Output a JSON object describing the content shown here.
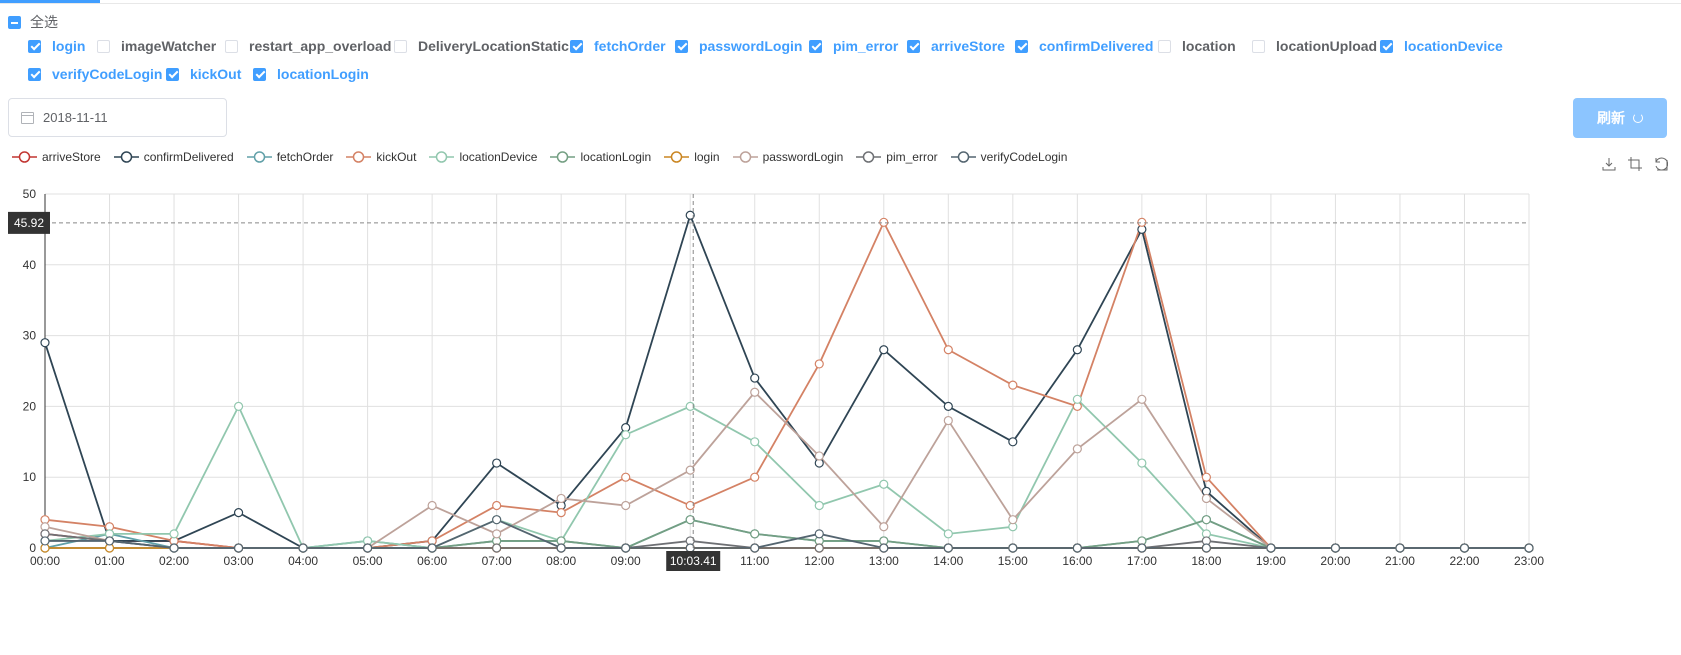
{
  "select_all": {
    "label": "全选",
    "state": "indeterminate"
  },
  "options": [
    {
      "label": "login",
      "checked": true
    },
    {
      "label": "imageWatcher",
      "checked": false
    },
    {
      "label": "restart_app_overload",
      "checked": false
    },
    {
      "label": "DeliveryLocationStatic",
      "checked": false
    },
    {
      "label": "fetchOrder",
      "checked": true
    },
    {
      "label": "passwordLogin",
      "checked": true
    },
    {
      "label": "pim_error",
      "checked": true
    },
    {
      "label": "arriveStore",
      "checked": true
    },
    {
      "label": "confirmDelivered",
      "checked": true
    },
    {
      "label": "location",
      "checked": false
    },
    {
      "label": "locationUpload",
      "checked": false
    },
    {
      "label": "locationDevice",
      "checked": true
    },
    {
      "label": "verifyCodeLogin",
      "checked": true
    },
    {
      "label": "kickOut",
      "checked": true
    },
    {
      "label": "locationLogin",
      "checked": true
    }
  ],
  "date": {
    "value": "2018-11-11",
    "icon": "calendar-icon"
  },
  "refresh_button": {
    "label": "刷新",
    "icon": "refresh-icon"
  },
  "toolbox": [
    "download-icon",
    "crop-icon",
    "restore-icon"
  ],
  "tooltip": {
    "y_value": "45.92",
    "x_value": "10:03.41"
  },
  "chart_data": {
    "type": "line",
    "x": [
      "00:00",
      "01:00",
      "02:00",
      "03:00",
      "04:00",
      "05:00",
      "06:00",
      "07:00",
      "08:00",
      "09:00",
      "10:00",
      "11:00",
      "12:00",
      "13:00",
      "14:00",
      "15:00",
      "16:00",
      "17:00",
      "18:00",
      "19:00",
      "20:00",
      "21:00",
      "22:00",
      "23:00"
    ],
    "x_ticks": [
      "00:00",
      "01:00",
      "02:00",
      "03:00",
      "04:00",
      "05:00",
      "06:00",
      "07:00",
      "08:00",
      "09:00",
      "11:00",
      "12:00",
      "13:00",
      "14:00",
      "15:00",
      "16:00",
      "17:00",
      "18:00",
      "19:00",
      "20:00",
      "21:00",
      "22:00",
      "23:00"
    ],
    "y_ticks": [
      0,
      10,
      20,
      30,
      40,
      50
    ],
    "ylim": [
      0,
      50
    ],
    "grid": true,
    "legend": "top-left",
    "series": [
      {
        "name": "arriveStore",
        "color": "#c23531",
        "values": [
          2,
          1,
          1,
          0,
          0,
          0,
          0,
          0,
          0,
          0,
          0,
          0,
          0,
          0,
          0,
          0,
          0,
          0,
          0,
          0,
          0,
          0,
          0,
          0
        ]
      },
      {
        "name": "confirmDelivered",
        "color": "#2f4554",
        "values": [
          29,
          1,
          1,
          5,
          0,
          0,
          1,
          12,
          6,
          17,
          47,
          24,
          12,
          28,
          20,
          15,
          28,
          45,
          8,
          0,
          0,
          0,
          0,
          0
        ]
      },
      {
        "name": "fetchOrder",
        "color": "#61a0a8",
        "values": [
          0,
          2,
          0,
          0,
          0,
          1,
          0,
          1,
          1,
          0,
          4,
          2,
          1,
          1,
          0,
          0,
          0,
          1,
          4,
          0,
          0,
          0,
          0,
          0
        ]
      },
      {
        "name": "kickOut",
        "color": "#d48265",
        "values": [
          4,
          3,
          1,
          0,
          0,
          0,
          1,
          6,
          5,
          10,
          6,
          10,
          26,
          46,
          28,
          23,
          20,
          46,
          10,
          0,
          0,
          0,
          0,
          0
        ]
      },
      {
        "name": "locationDevice",
        "color": "#91c7ae",
        "values": [
          1,
          2,
          2,
          20,
          0,
          1,
          0,
          4,
          1,
          16,
          20,
          15,
          6,
          9,
          2,
          3,
          21,
          12,
          2,
          0,
          0,
          0,
          0,
          0
        ]
      },
      {
        "name": "locationLogin",
        "color": "#749f83",
        "values": [
          0,
          0,
          0,
          0,
          0,
          0,
          0,
          1,
          1,
          0,
          4,
          2,
          1,
          1,
          0,
          0,
          0,
          1,
          4,
          0,
          0,
          0,
          0,
          0
        ]
      },
      {
        "name": "login",
        "color": "#ca8622",
        "values": [
          0,
          0,
          0,
          0,
          0,
          0,
          0,
          0,
          0,
          0,
          0,
          0,
          0,
          0,
          0,
          0,
          0,
          0,
          0,
          0,
          0,
          0,
          0,
          0
        ]
      },
      {
        "name": "passwordLogin",
        "color": "#bda29a",
        "values": [
          3,
          1,
          0,
          0,
          0,
          0,
          6,
          2,
          7,
          6,
          11,
          22,
          13,
          3,
          18,
          4,
          14,
          21,
          7,
          0,
          0,
          0,
          0,
          0
        ]
      },
      {
        "name": "pim_error",
        "color": "#6e7074",
        "values": [
          2,
          1,
          0,
          0,
          0,
          0,
          0,
          0,
          0,
          0,
          1,
          0,
          0,
          0,
          0,
          0,
          0,
          0,
          1,
          0,
          0,
          0,
          0,
          0
        ]
      },
      {
        "name": "verifyCodeLogin",
        "color": "#546570",
        "values": [
          1,
          1,
          0,
          0,
          0,
          0,
          0,
          4,
          0,
          0,
          0,
          0,
          2,
          0,
          0,
          0,
          0,
          0,
          0,
          0,
          0,
          0,
          0,
          0
        ]
      }
    ]
  }
}
